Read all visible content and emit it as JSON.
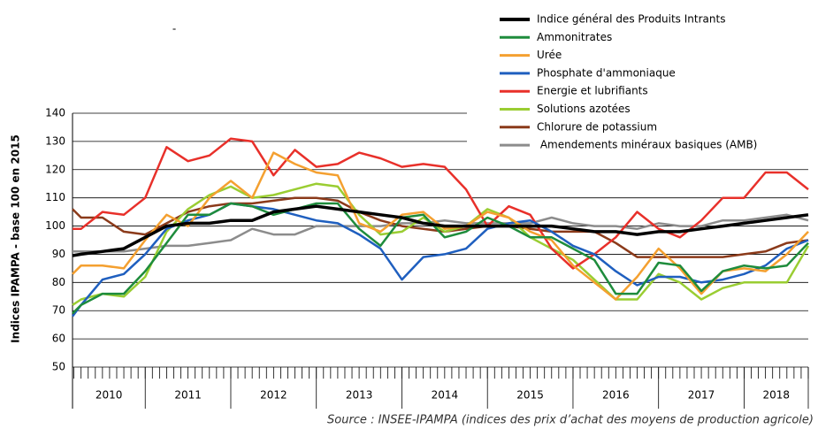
{
  "chart_data": {
    "type": "line",
    "subtitle": "-",
    "y_label": "Indices IPAMPA - base 100 en 2015",
    "source": "Source : INSEE-IPAMPA (indices des prix d’achat des moyens de production agricole)",
    "x": [
      2010.15,
      2010.25,
      2010.5,
      2010.75,
      2011,
      2011.25,
      2011.5,
      2011.75,
      2012,
      2012.25,
      2012.5,
      2012.75,
      2013,
      2013.25,
      2013.5,
      2013.75,
      2014,
      2014.25,
      2014.5,
      2014.75,
      2015,
      2015.25,
      2015.5,
      2015.75,
      2016,
      2016.25,
      2016.5,
      2016.75,
      2017,
      2017.25,
      2017.5,
      2017.75,
      2018,
      2018.25,
      2018.5,
      2018.75
    ],
    "xlim": [
      2010.15,
      2018.75
    ],
    "xticks": [
      {
        "value": 2010.5,
        "label": "2010"
      },
      {
        "value": 2011.5,
        "label": "2011"
      },
      {
        "value": 2012.5,
        "label": "2012"
      },
      {
        "value": 2013.5,
        "label": "2013"
      },
      {
        "value": 2014.5,
        "label": "2014"
      },
      {
        "value": 2015.5,
        "label": "2015"
      },
      {
        "value": 2016.5,
        "label": "2016"
      },
      {
        "value": 2017.5,
        "label": "2017"
      },
      {
        "value": 2018.5,
        "label": "2018"
      }
    ],
    "ylim": [
      50,
      140
    ],
    "yticks": [
      50,
      60,
      70,
      80,
      90,
      100,
      110,
      120,
      130,
      140
    ],
    "grid": true,
    "legend": "top-right",
    "series": [
      {
        "name": "Indice général des Produits Intrants",
        "color": "#000000",
        "values": [
          89.5,
          90,
          91,
          92,
          96,
          100,
          101,
          101,
          102,
          102,
          105,
          106,
          107,
          106,
          105,
          104,
          103,
          101,
          100,
          100,
          100,
          100,
          100,
          100,
          99,
          98,
          98,
          97,
          98,
          98,
          99,
          100,
          101,
          102,
          103,
          104
        ]
      },
      {
        "name": "Ammonitrates",
        "color": "#1e8c3c",
        "values": [
          69,
          72,
          76,
          76,
          84,
          94,
          104,
          104,
          108,
          107,
          104,
          106,
          108,
          108,
          99,
          93,
          103,
          104,
          96,
          98,
          103,
          100,
          96,
          96,
          92,
          88,
          76,
          76,
          87,
          86,
          77,
          84,
          86,
          85,
          86,
          94
        ]
      },
      {
        "name": "Urée",
        "color": "#f4a030",
        "values": [
          83,
          86,
          86,
          85,
          95,
          104,
          100,
          110,
          116,
          110,
          126,
          122,
          119,
          118,
          101,
          98,
          104,
          105,
          99,
          100,
          105,
          103,
          98,
          95,
          86,
          80,
          74,
          82,
          92,
          85,
          76,
          84,
          85,
          84,
          90,
          98
        ]
      },
      {
        "name": "Phosphate d'ammoniaque",
        "color": "#1f5fbf",
        "values": [
          68,
          72,
          81,
          83,
          90,
          99,
          102,
          104,
          108,
          107,
          106,
          104,
          102,
          101,
          97,
          92,
          81,
          89,
          90,
          92,
          99,
          101,
          102,
          98,
          93,
          90,
          84,
          79,
          82,
          82,
          80,
          81,
          83,
          86,
          92,
          95
        ]
      },
      {
        "name": "Energie et lubrifiants",
        "color": "#e8302a",
        "values": [
          99,
          99,
          105,
          104,
          110,
          128,
          123,
          125,
          131,
          130,
          118,
          127,
          121,
          122,
          126,
          124,
          121,
          122,
          121,
          113,
          100,
          107,
          104,
          92,
          85,
          90,
          96,
          105,
          99,
          96,
          102,
          110,
          110,
          119,
          119,
          113
        ]
      },
      {
        "name": "Solutions azotées",
        "color": "#9acd32",
        "values": [
          72,
          74,
          76,
          75,
          82,
          98,
          106,
          111,
          114,
          110,
          111,
          113,
          115,
          114,
          104,
          97,
          98,
          103,
          98,
          100,
          106,
          103,
          96,
          92,
          88,
          81,
          74,
          74,
          83,
          80,
          74,
          78,
          80,
          80,
          80,
          93
        ]
      },
      {
        "name": "Chlorure de potassium",
        "color": "#8b3a1a",
        "values": [
          106,
          103,
          103,
          98,
          97,
          101,
          105,
          107,
          108,
          108,
          109,
          110,
          110,
          109,
          105,
          102,
          100,
          99,
          98,
          99,
          100,
          100,
          99,
          98,
          98,
          98,
          94,
          89,
          89,
          89,
          89,
          89,
          90,
          91,
          94,
          95
        ]
      },
      {
        "name": " Amendements minéraux basiques (AMB)",
        "color": "#8c8c8c",
        "values": [
          91,
          91,
          91,
          91,
          92,
          93,
          93,
          94,
          95,
          99,
          97,
          97,
          100,
          100,
          100,
          100,
          101,
          101,
          102,
          101,
          101,
          101,
          101,
          103,
          101,
          100,
          100,
          99,
          101,
          100,
          100,
          102,
          102,
          103,
          104,
          102
        ]
      }
    ]
  }
}
